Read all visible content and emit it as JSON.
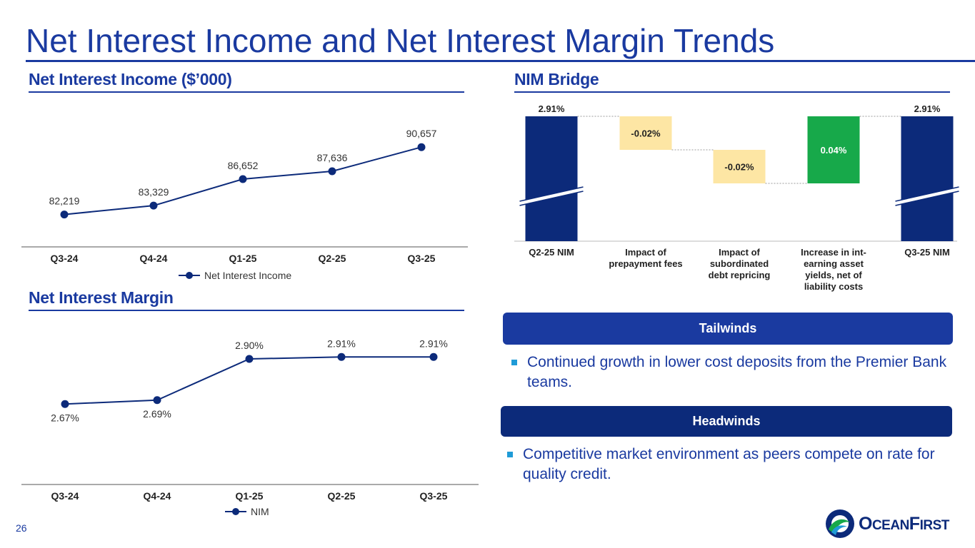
{
  "page": {
    "title": "Net Interest Income and Net Interest Margin Trends",
    "page_number": "26"
  },
  "colors": {
    "brand": "#1a3aa0",
    "navy": "#0c2a7a",
    "highlight_yellow": "#fde6a4",
    "increase_green": "#17a94a",
    "bullet_blue": "#1f9bd7"
  },
  "sections": {
    "nii_title": "Net Interest Income ($’000)",
    "nim_title": "Net Interest Margin",
    "bridge_title": "NIM Bridge"
  },
  "chart_data": [
    {
      "type": "line",
      "title": "Net Interest Income ($’000)",
      "categories": [
        "Q3-24",
        "Q4-24",
        "Q1-25",
        "Q2-25",
        "Q3-25"
      ],
      "series": [
        {
          "name": "Net Interest Income",
          "values": [
            82219,
            83329,
            86652,
            87636,
            90657
          ],
          "labels": [
            "82,219",
            "83,329",
            "86,652",
            "87,636",
            "90,657"
          ]
        }
      ],
      "ylim": [
        79500,
        93000
      ],
      "legend": "bottom-center"
    },
    {
      "type": "line",
      "title": "Net Interest Margin",
      "categories": [
        "Q3-24",
        "Q4-24",
        "Q1-25",
        "Q2-25",
        "Q3-25"
      ],
      "series": [
        {
          "name": "NIM",
          "values": [
            2.67,
            2.69,
            2.9,
            2.91,
            2.91
          ],
          "labels": [
            "2.67%",
            "2.69%",
            "2.90%",
            "2.91%",
            "2.91%"
          ]
        }
      ],
      "ylim": [
        2.5,
        2.98
      ],
      "legend": "bottom-center"
    },
    {
      "type": "bar",
      "subtype": "waterfall",
      "title": "NIM Bridge",
      "categories": [
        "Q2-25 NIM",
        "Impact of prepayment fees",
        "Impact of subordinated debt repricing",
        "Increase in int-earning asset yields, net of liability costs",
        "Q3-25 NIM"
      ],
      "category_lines": [
        [
          "Q2-25 NIM"
        ],
        [
          "Impact of",
          "prepayment fees"
        ],
        [
          "Impact of",
          "subordinated",
          "debt repricing"
        ],
        [
          "Increase in int-",
          "earning asset",
          "yields, net of",
          "liability costs"
        ],
        [
          "Q3-25 NIM"
        ]
      ],
      "values": [
        2.91,
        -0.02,
        -0.02,
        0.04,
        2.91
      ],
      "labels": [
        "2.91%",
        "-0.02%",
        "-0.02%",
        "0.04%",
        "2.91%"
      ],
      "kinds": [
        "total",
        "decrease",
        "decrease",
        "increase",
        "total"
      ],
      "axis_break": true
    }
  ],
  "tailwinds": {
    "label": "Tailwinds",
    "bullets": [
      "Continued growth in lower cost deposits from the Premier Bank teams."
    ]
  },
  "headwinds": {
    "label": "Headwinds",
    "bullets": [
      "Competitive market environment as peers compete on rate for quality credit."
    ]
  },
  "logo": {
    "text_big_1": "O",
    "text_small_1": "CEAN",
    "text_big_2": "F",
    "text_small_2": "IRST"
  }
}
